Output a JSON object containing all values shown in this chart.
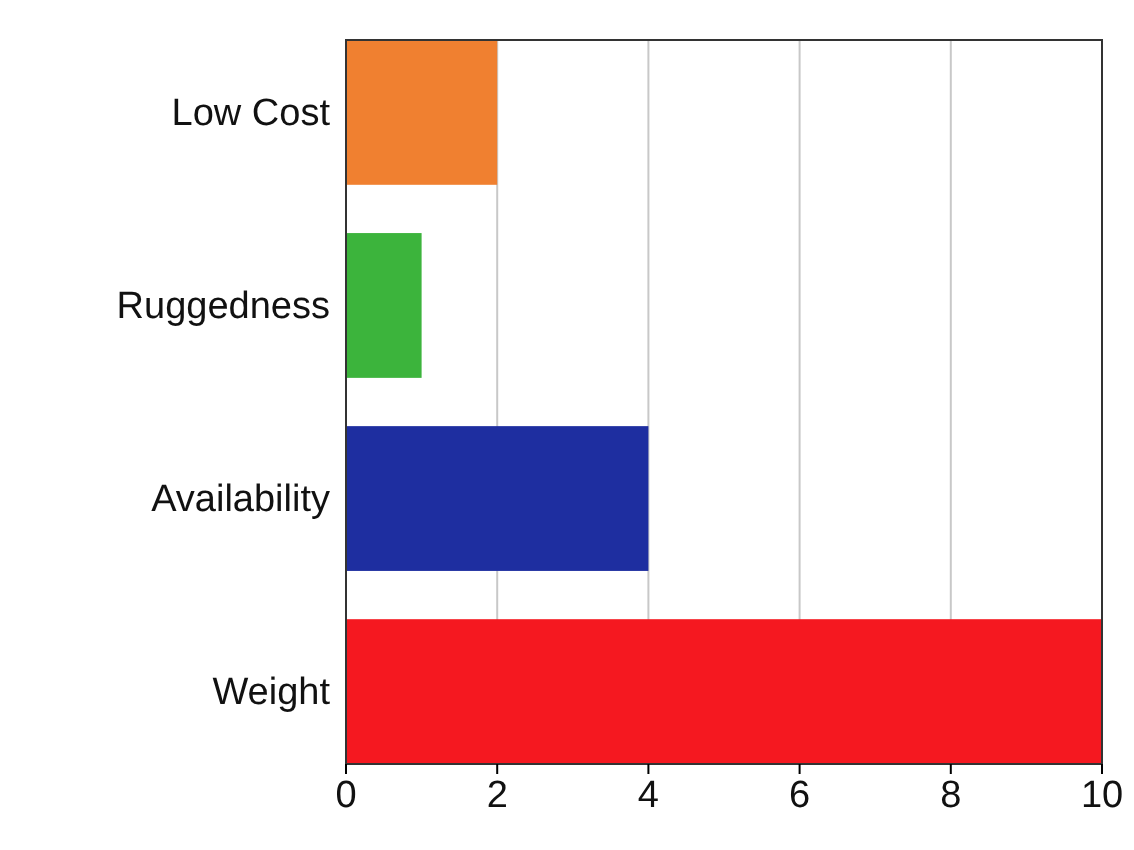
{
  "chart_data": {
    "type": "bar",
    "orientation": "horizontal",
    "categories": [
      "Low Cost",
      "Ruggedness",
      "Availability",
      "Weight"
    ],
    "values": [
      2,
      1,
      4,
      10
    ],
    "colors": [
      "#f08030",
      "#3cb43c",
      "#1e2ea0",
      "#f51820"
    ],
    "xlim": [
      0,
      10
    ],
    "xticks": [
      0,
      2,
      4,
      6,
      8,
      10
    ],
    "grid": "x"
  }
}
